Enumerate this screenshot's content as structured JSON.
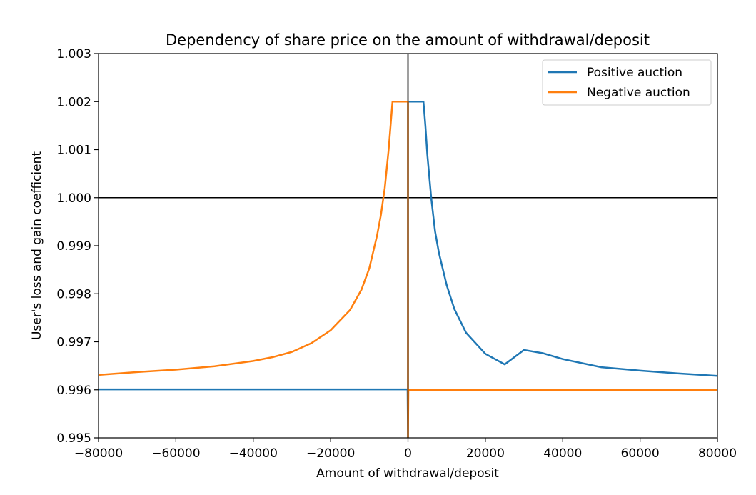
{
  "chart_data": {
    "type": "line",
    "title": "Dependency of share price on the amount of withdrawal/deposit",
    "xlabel": "Amount of withdrawal/deposit",
    "ylabel": "User's loss and gain coefficient",
    "xlim": [
      -80000,
      80000
    ],
    "ylim": [
      0.995,
      1.003
    ],
    "x_ticks": [
      -80000,
      -60000,
      -40000,
      -20000,
      0,
      20000,
      40000,
      60000,
      80000
    ],
    "x_tick_labels": [
      "−80000",
      "−60000",
      "−40000",
      "−20000",
      "0",
      "20000",
      "40000",
      "60000",
      "80000"
    ],
    "y_ticks": [
      0.995,
      0.996,
      0.997,
      0.998,
      0.999,
      1.0,
      1.001,
      1.002,
      1.003
    ],
    "y_tick_labels": [
      "0.995",
      "0.996",
      "0.997",
      "0.998",
      "0.999",
      "1.000",
      "1.001",
      "1.002",
      "1.003"
    ],
    "legend_position": "top-right",
    "reference_lines": [
      {
        "orientation": "horizontal",
        "value": 1.0,
        "color": "#000000"
      },
      {
        "orientation": "vertical",
        "value": 0,
        "color": "#000000"
      }
    ],
    "series": [
      {
        "name": "Positive auction",
        "color": "#1f77b4",
        "points": [
          [
            -80000,
            0.99601
          ],
          [
            -40000,
            0.99601
          ],
          [
            -100,
            0.99601
          ],
          [
            0,
            0.995
          ],
          [
            0,
            1.002
          ],
          [
            4000,
            1.002
          ],
          [
            4500,
            1.0015
          ],
          [
            5000,
            1.0009
          ],
          [
            6000,
            1.0
          ],
          [
            7000,
            0.9993
          ],
          [
            8000,
            0.99885
          ],
          [
            10000,
            0.99818
          ],
          [
            12000,
            0.99768
          ],
          [
            15000,
            0.99719
          ],
          [
            20000,
            0.99675
          ],
          [
            25000,
            0.99653
          ],
          [
            30000,
            0.99683
          ],
          [
            30000,
            0.99683
          ],
          [
            35000,
            0.99676
          ],
          [
            40000,
            0.99664
          ],
          [
            50000,
            0.99647
          ],
          [
            60000,
            0.9964
          ],
          [
            70000,
            0.99634
          ],
          [
            80000,
            0.99629
          ]
        ]
      },
      {
        "name": "Negative auction",
        "color": "#ff7f0e",
        "points": [
          [
            -80000,
            0.99631
          ],
          [
            -70000,
            0.99637
          ],
          [
            -60000,
            0.99642
          ],
          [
            -50000,
            0.99649
          ],
          [
            -40000,
            0.9966
          ],
          [
            -35000,
            0.99668
          ],
          [
            -30000,
            0.99679
          ],
          [
            -25000,
            0.99697
          ],
          [
            -20000,
            0.99724
          ],
          [
            -15000,
            0.99766
          ],
          [
            -12000,
            0.99809
          ],
          [
            -10000,
            0.99853
          ],
          [
            -8000,
            0.99921
          ],
          [
            -7000,
            0.99964
          ],
          [
            -6000,
            1.0002
          ],
          [
            -5000,
            1.001
          ],
          [
            -4500,
            1.0015
          ],
          [
            -4000,
            1.002
          ],
          [
            -100,
            1.002
          ],
          [
            0,
            1.002
          ],
          [
            0,
            0.995
          ],
          [
            100,
            0.996
          ],
          [
            40000,
            0.996
          ],
          [
            80000,
            0.996
          ]
        ]
      }
    ]
  }
}
